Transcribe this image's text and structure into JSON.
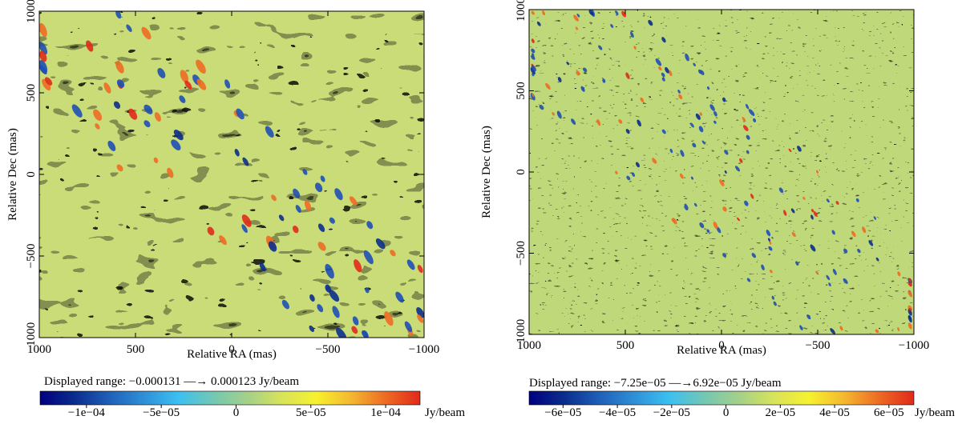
{
  "colors": {
    "colormap": [
      "#00007f",
      "#0b2d8c",
      "#1f5fb8",
      "#2f8fd8",
      "#3cc0f0",
      "#73c7b3",
      "#a4d08a",
      "#d8e35a",
      "#f6f12f",
      "#f4b830",
      "#ee6b24",
      "#e02a1a"
    ]
  },
  "chart_data": [
    {
      "type": "heatmap",
      "title": "",
      "xlabel": "Relative RA (mas)",
      "ylabel": "Relative Dec (mas)",
      "xlim": [
        1000,
        -1000
      ],
      "ylim": [
        -1000,
        1000
      ],
      "xticks": [
        "1000",
        "500",
        "0",
        "−500",
        "−1000"
      ],
      "xtick_values": [
        1000,
        500,
        0,
        -500,
        -1000
      ],
      "yticks": [
        "−1000",
        "−500",
        "0",
        "500",
        "1000"
      ],
      "ytick_values": [
        -1000,
        -500,
        0,
        500,
        1000
      ],
      "range_text": "Displayed range: −0.000131 —→ 0.000123 Jy/beam",
      "range_min": -0.000131,
      "range_max": 0.000123,
      "colorbar_ticks": [
        "−1e−04",
        "−5e−05",
        "0",
        "5e−05",
        "1e−04"
      ],
      "colorbar_values": [
        -0.0001,
        -5e-05,
        0,
        5e-05,
        0.0001
      ],
      "colorbar_unit": "Jy/beam",
      "texture": "coarse"
    },
    {
      "type": "heatmap",
      "title": "",
      "xlabel": "Relative RA (mas)",
      "ylabel": "Relative Dec (mas)",
      "xlim": [
        1000,
        -1000
      ],
      "ylim": [
        -1000,
        1000
      ],
      "xticks": [
        "1000",
        "500",
        "0",
        "−500",
        "−1000"
      ],
      "xtick_values": [
        1000,
        500,
        0,
        -500,
        -1000
      ],
      "yticks": [
        "−1000",
        "−500",
        "0",
        "500",
        "1000"
      ],
      "ytick_values": [
        -1000,
        -500,
        0,
        500,
        1000
      ],
      "range_text": "Displayed range: −7.25e−05 —→6.92e−05 Jy/beam",
      "range_min": -7.25e-05,
      "range_max": 6.92e-05,
      "colorbar_ticks": [
        "−6e−05",
        "−4e−05",
        "−2e−05",
        "0",
        "2e−05",
        "4e−05",
        "6e−05"
      ],
      "colorbar_values": [
        -6e-05,
        -4e-05,
        -2e-05,
        0,
        2e-05,
        4e-05,
        6e-05
      ],
      "colorbar_unit": "Jy/beam",
      "texture": "fine"
    }
  ]
}
